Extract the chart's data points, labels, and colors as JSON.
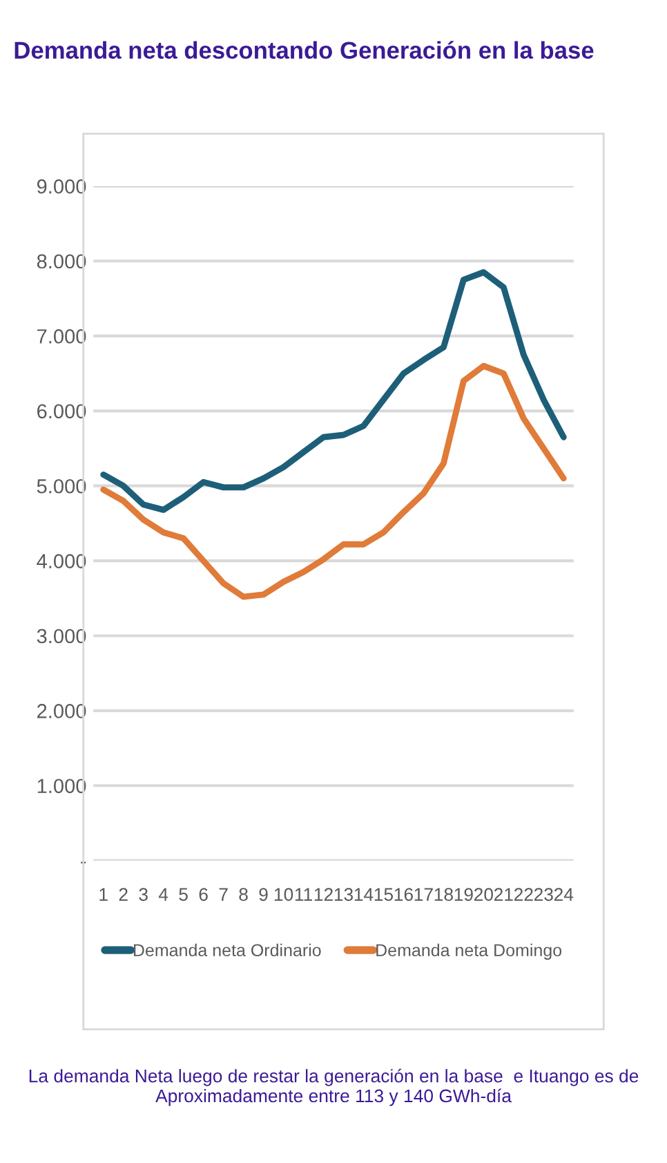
{
  "chart_data": {
    "type": "line",
    "title": "Demanda neta descontando Generación en la base",
    "categories": [
      "1",
      "2",
      "3",
      "4",
      "5",
      "6",
      "7",
      "8",
      "9",
      "10",
      "11",
      "12",
      "13",
      "14",
      "15",
      "16",
      "17",
      "18",
      "19",
      "20",
      "21",
      "22",
      "23",
      "24"
    ],
    "series": [
      {
        "name": "Demanda neta Ordinario",
        "color": "#1d5f78",
        "values": [
          5150,
          5000,
          4750,
          4680,
          4850,
          5050,
          4980,
          4980,
          5100,
          5250,
          5450,
          5650,
          5680,
          5800,
          6150,
          6500,
          6680,
          6850,
          7750,
          7850,
          7650,
          6750,
          6150,
          5650
        ]
      },
      {
        "name": "Demanda neta Domingo",
        "color": "#e07b39",
        "values": [
          4950,
          4800,
          4550,
          4380,
          4300,
          4000,
          3700,
          3520,
          3550,
          3720,
          3850,
          4020,
          4220,
          4220,
          4380,
          4650,
          4900,
          5300,
          6400,
          6600,
          6500,
          5900,
          5500,
          5100
        ]
      }
    ],
    "ylim": [
      0,
      9000
    ],
    "yticks": [
      {
        "value": 0,
        "label": "-"
      },
      {
        "value": 1000,
        "label": "1.000"
      },
      {
        "value": 2000,
        "label": "2.000"
      },
      {
        "value": 3000,
        "label": "3.000"
      },
      {
        "value": 4000,
        "label": "4.000"
      },
      {
        "value": 5000,
        "label": "5.000"
      },
      {
        "value": 6000,
        "label": "6.000"
      },
      {
        "value": 7000,
        "label": "7.000"
      },
      {
        "value": 8000,
        "label": "8.000"
      },
      {
        "value": 9000,
        "label": "9.000"
      }
    ],
    "grid": "y",
    "legend": "bottom",
    "marker": "none",
    "line_style": "solid",
    "annotations": [
      "La demanda Neta luego de restar la generación en la base  e Ituango es de Aproximadamente entre 113 y 140 GWh-día"
    ]
  }
}
